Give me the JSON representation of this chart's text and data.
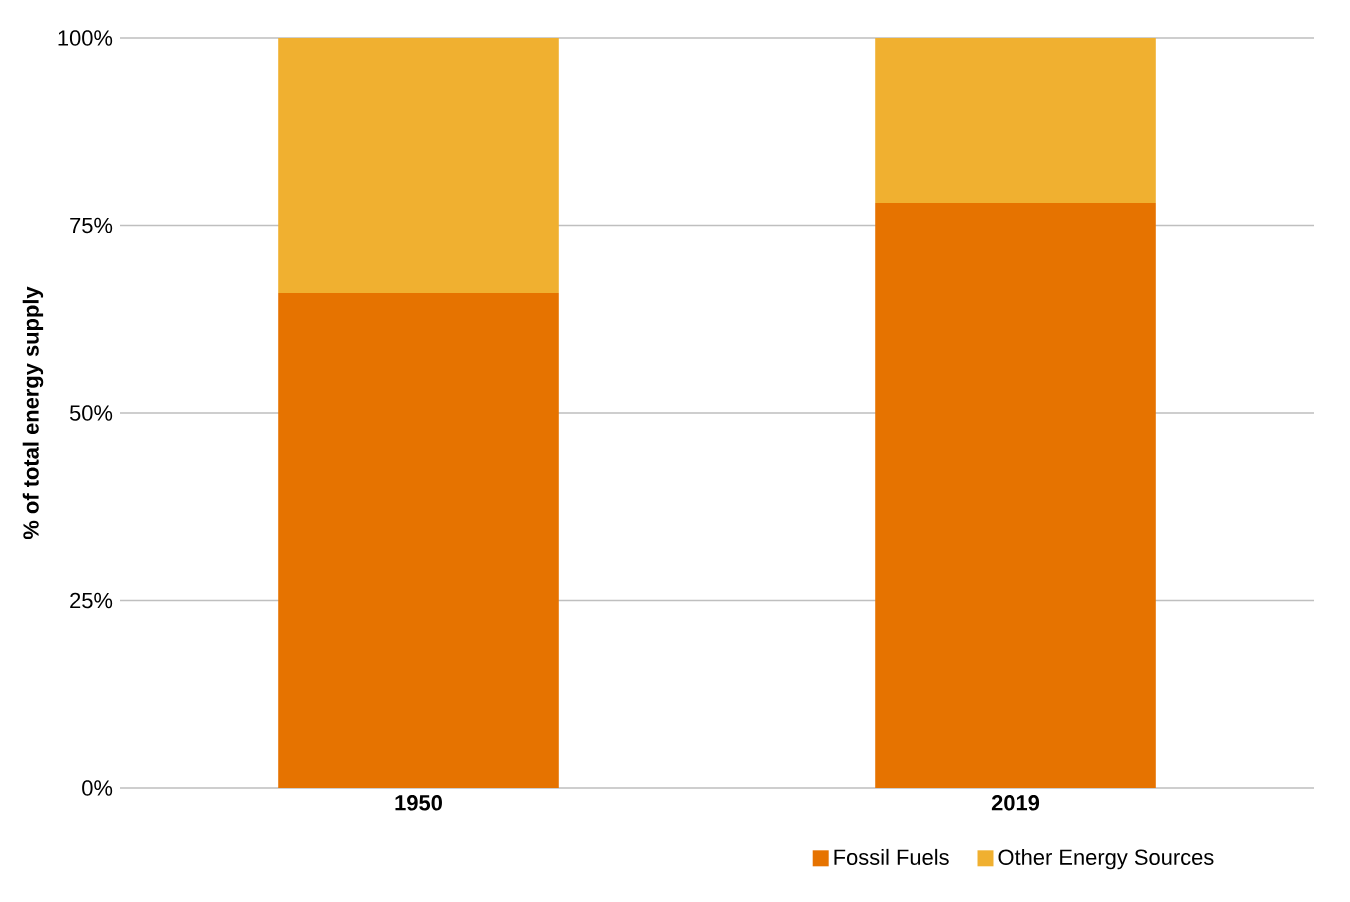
{
  "chart_data": {
    "type": "bar",
    "stacked": true,
    "ylabel": "% of total energy supply",
    "categories": [
      "1950",
      "2019"
    ],
    "series": [
      {
        "name": "Fossil Fuels",
        "color": "#e67300",
        "values": [
          66,
          78
        ]
      },
      {
        "name": "Other Energy Sources",
        "color": "#f0b030",
        "values": [
          34,
          22
        ]
      }
    ],
    "ylim": [
      0,
      100
    ],
    "yticks": [
      {
        "value": 0,
        "label": "0%"
      },
      {
        "value": 25,
        "label": "25%"
      },
      {
        "value": 50,
        "label": "50%"
      },
      {
        "value": 75,
        "label": "75%"
      },
      {
        "value": 100,
        "label": "100%"
      }
    ],
    "grid": "y",
    "legend": "bottom"
  }
}
